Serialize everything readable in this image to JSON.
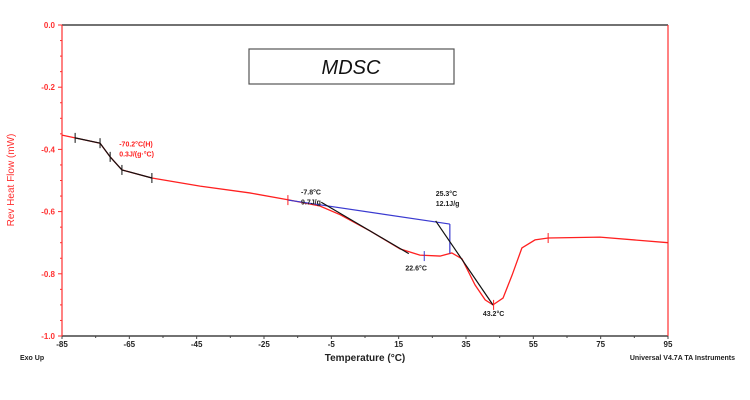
{
  "chart_data": {
    "type": "line",
    "title": "MDSC",
    "xlabel": "Temperature (°C)",
    "ylabel": "Rev Heat Flow (mW)",
    "xlim": [
      -85,
      95
    ],
    "ylim": [
      -1.0,
      0.0
    ],
    "xticks": [
      "-85",
      "-65",
      "-45",
      "-25",
      "-5",
      "15",
      "35",
      "55",
      "75",
      "95"
    ],
    "yticks": [
      "0.0",
      "-0.2",
      "-0.4",
      "-0.6",
      "-0.8",
      "-1.0"
    ],
    "footer_left": "Exo Up",
    "footer_right": "Universal V4.7A TA Instruments",
    "colors": {
      "curve": "#ff2020",
      "baseline": "#3a3ad0",
      "tangent": "#111111",
      "axis_text": "#ff3030"
    },
    "series": [
      {
        "x": [
          -85,
          -81.1,
          -73.7,
          -70.7,
          -67.2,
          -58.3,
          -44,
          -29.2,
          -17.3,
          -8.4,
          -2.4,
          6.5,
          15.4,
          21.3,
          27.3,
          30.8,
          33.8,
          37.7,
          40.7,
          43.0,
          46,
          48.7,
          51.6,
          55.5,
          59.4,
          74.8,
          95
        ],
        "y": [
          -0.354,
          -0.363,
          -0.38,
          -0.424,
          -0.466,
          -0.492,
          -0.518,
          -0.54,
          -0.563,
          -0.582,
          -0.61,
          -0.662,
          -0.72,
          -0.74,
          -0.743,
          -0.733,
          -0.752,
          -0.836,
          -0.884,
          -0.9,
          -0.878,
          -0.804,
          -0.717,
          -0.691,
          -0.685,
          -0.682,
          -0.7
        ]
      }
    ],
    "baseline": {
      "x": [
        -17.9,
        30.2
      ],
      "y": [
        -0.563,
        -0.64
      ]
    },
    "annotations": [
      {
        "lines": [
          "-70.2°C(H)",
          "0.3J/(g·°C)"
        ],
        "x": -68,
        "y": -0.39,
        "color": "#ff2020"
      },
      {
        "lines": [
          "-7.8°C",
          "9.7J/g"
        ],
        "x": -14,
        "y": -0.545,
        "color": "#222"
      },
      {
        "lines": [
          "25.3°C",
          "12.1J/g"
        ],
        "x": 26,
        "y": -0.55,
        "color": "#222"
      },
      {
        "lines": [
          "22.6°C"
        ],
        "x": 17,
        "y": -0.79,
        "color": "#222"
      },
      {
        "lines": [
          "43.2°C"
        ],
        "x": 40,
        "y": -0.935,
        "color": "#222"
      }
    ]
  }
}
